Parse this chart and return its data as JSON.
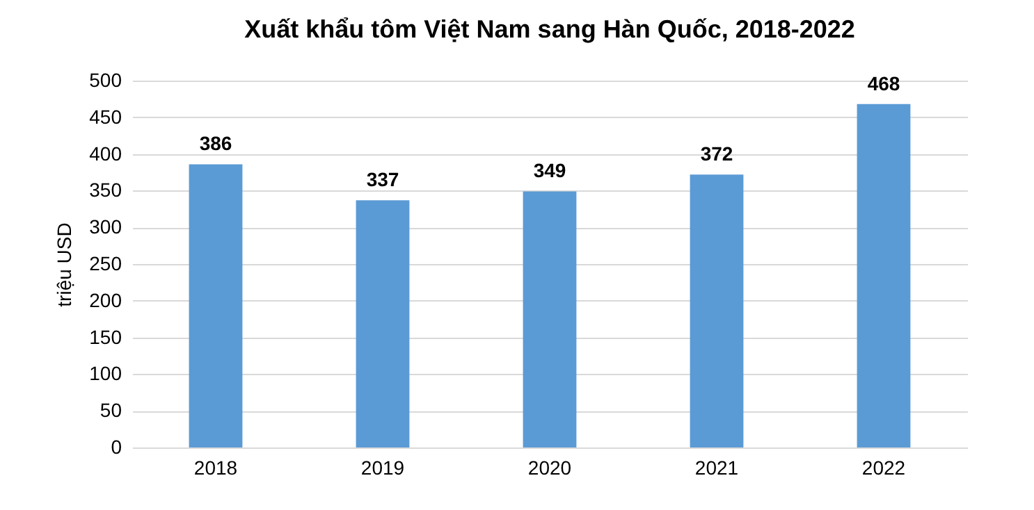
{
  "chart_data": {
    "type": "bar",
    "title": "Xuất khẩu tôm Việt Nam sang Hàn Quốc, 2018-2022",
    "ylabel": "triệu USD",
    "categories": [
      "2018",
      "2019",
      "2020",
      "2021",
      "2022"
    ],
    "values": [
      386,
      337,
      349,
      372,
      468
    ],
    "color": "#5b9bd5",
    "ylim": [
      0,
      500
    ],
    "yticks": [
      0,
      50,
      100,
      150,
      200,
      250,
      300,
      350,
      400,
      450,
      500
    ],
    "grid": "y",
    "data_labels": true
  }
}
